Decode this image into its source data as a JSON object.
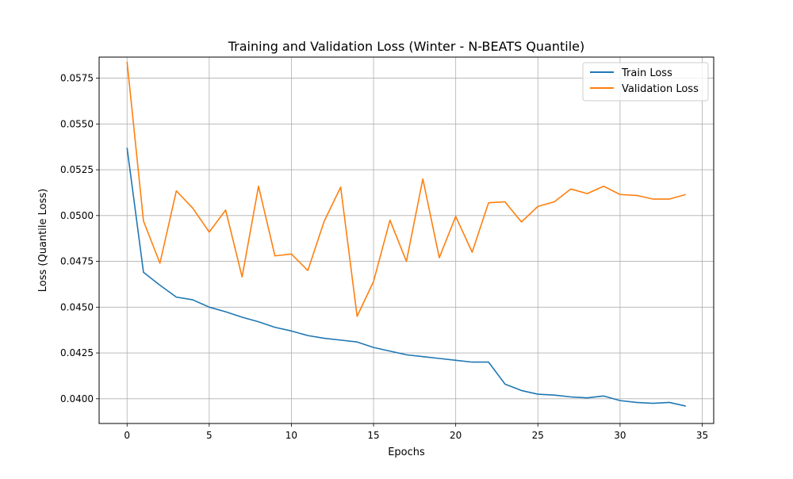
{
  "chart_data": {
    "type": "line",
    "title": "Training and Validation Loss (Winter - N-BEATS Quantile)",
    "xlabel": "Epochs",
    "ylabel": "Loss (Quantile Loss)",
    "xlim": [
      -1.7,
      35.7
    ],
    "ylim": [
      0.03865,
      0.05865
    ],
    "xticks": [
      0,
      5,
      10,
      15,
      20,
      25,
      30,
      35
    ],
    "xtick_labels": [
      "0",
      "5",
      "10",
      "15",
      "20",
      "25",
      "30",
      "35"
    ],
    "yticks": [
      0.04,
      0.0425,
      0.045,
      0.0475,
      0.05,
      0.0525,
      0.055,
      0.0575
    ],
    "ytick_labels": [
      "0.0400",
      "0.0425",
      "0.0450",
      "0.0475",
      "0.0500",
      "0.0525",
      "0.0550",
      "0.0575"
    ],
    "grid": true,
    "legend_position": "top-right",
    "x": [
      0,
      1,
      2,
      3,
      4,
      5,
      6,
      7,
      8,
      9,
      10,
      11,
      12,
      13,
      14,
      15,
      16,
      17,
      18,
      19,
      20,
      21,
      22,
      23,
      24,
      25,
      26,
      27,
      28,
      29,
      30,
      31,
      32,
      33,
      34
    ],
    "series": [
      {
        "name": "Train Loss",
        "color": "#1f77b4",
        "values": [
          0.0537,
          0.0469,
          0.0462,
          0.04555,
          0.0454,
          0.045,
          0.04475,
          0.04445,
          0.0442,
          0.0439,
          0.0437,
          0.04345,
          0.0433,
          0.0432,
          0.0431,
          0.0428,
          0.0426,
          0.0424,
          0.0423,
          0.0422,
          0.0421,
          0.042,
          0.042,
          0.0408,
          0.04045,
          0.04025,
          0.0402,
          0.0401,
          0.04005,
          0.04015,
          0.0399,
          0.0398,
          0.03975,
          0.0398,
          0.0396
        ]
      },
      {
        "name": "Validation Loss",
        "color": "#ff7f0e",
        "values": [
          0.0584,
          0.0497,
          0.0474,
          0.05135,
          0.0504,
          0.0491,
          0.0503,
          0.04665,
          0.0516,
          0.0478,
          0.0479,
          0.047,
          0.0497,
          0.05155,
          0.0445,
          0.0464,
          0.04975,
          0.0475,
          0.052,
          0.0477,
          0.04995,
          0.048,
          0.0507,
          0.05075,
          0.04965,
          0.0505,
          0.05075,
          0.05145,
          0.0512,
          0.0516,
          0.05115,
          0.0511,
          0.0509,
          0.0509,
          0.05115
        ]
      }
    ]
  }
}
